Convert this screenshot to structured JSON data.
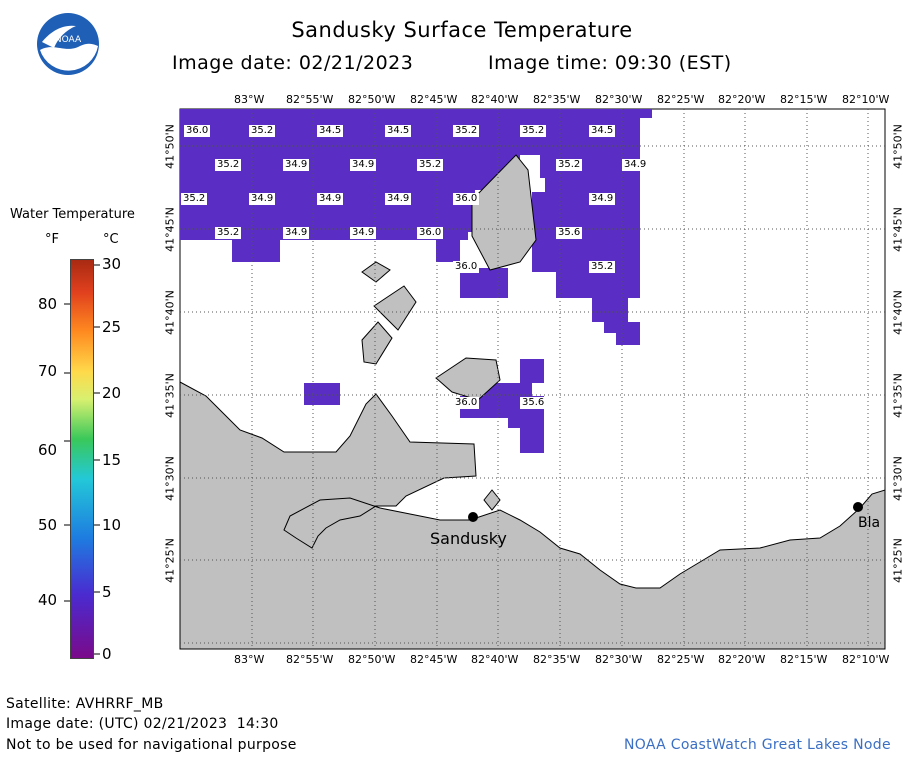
{
  "title": "Sandusky Surface Temperature",
  "image_date_line": "Image date: 02/21/2023",
  "image_time_line": "Image time: 09:30 (EST)",
  "legend": {
    "title": "Water Temperature",
    "unit_f": "°F",
    "unit_c": "°C",
    "f_ticks": [
      "80",
      "70",
      "60",
      "50",
      "40"
    ],
    "c_ticks": [
      "30",
      "25",
      "20",
      "15",
      "10",
      "5",
      "0"
    ]
  },
  "map": {
    "lon_labels": [
      "83°W",
      "82°55'W",
      "82°50'W",
      "82°45'W",
      "82°40'W",
      "82°35'W",
      "82°30'W",
      "82°25'W",
      "82°20'W",
      "82°15'W",
      "82°10'W"
    ],
    "lat_labels": [
      "41°50'N",
      "41°45'N",
      "41°40'N",
      "41°35'N",
      "41°30'N",
      "41°25'N"
    ],
    "cities": [
      "Sandusky",
      "Bla"
    ],
    "temps": [
      "36.0",
      "35.2",
      "34.5",
      "34.5",
      "35.2",
      "35.2",
      "34.5",
      "35.2",
      "34.9",
      "34.9",
      "35.2",
      "35.2",
      "34.9",
      "35.2",
      "34.9",
      "34.9",
      "34.9",
      "36.0",
      "34.9",
      "35.2",
      "34.9",
      "34.9",
      "36.0",
      "35.6",
      "36.0",
      "35.2",
      "36.0",
      "35.6"
    ]
  },
  "footer": {
    "satellite": "Satellite: AVHRRF_MB",
    "utc_date": "Image date: (UTC) 02/21/2023  14:30",
    "disclaimer": "Not to be used for navigational purpose",
    "credit": "NOAA CoastWatch Great Lakes Node"
  },
  "colors": {
    "water_ice": "#5a2dc4",
    "land": "#c0c0c0",
    "credit": "#3b6fc4"
  }
}
